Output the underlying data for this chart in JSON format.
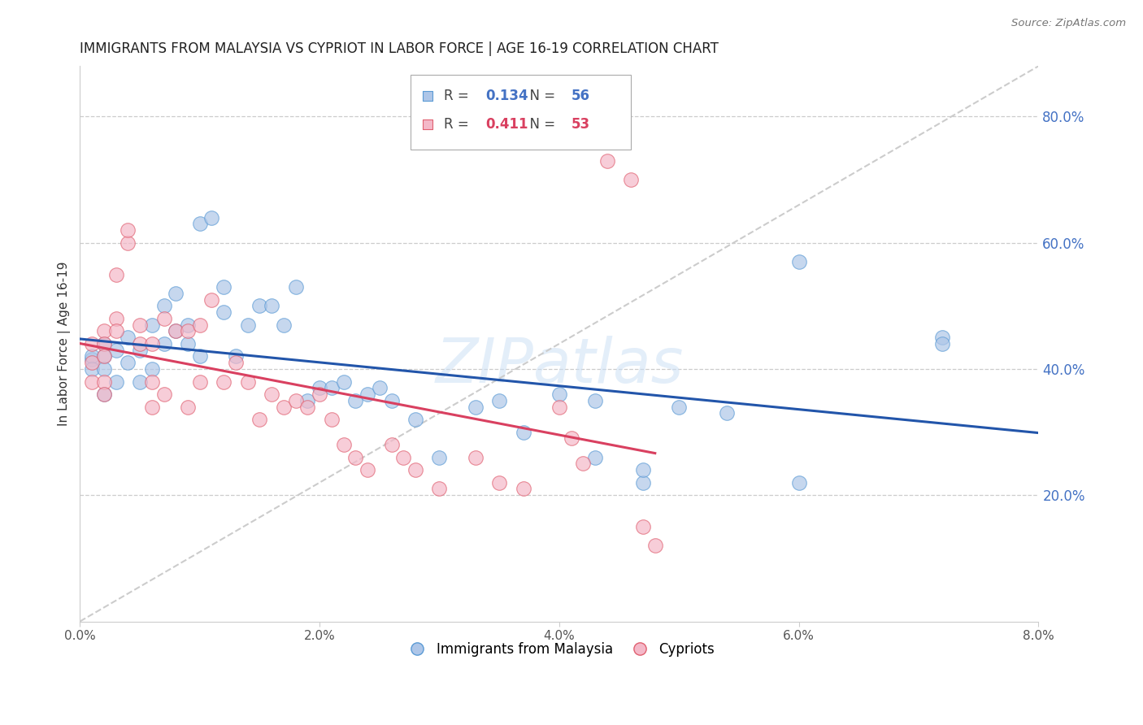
{
  "title": "IMMIGRANTS FROM MALAYSIA VS CYPRIOT IN LABOR FORCE | AGE 16-19 CORRELATION CHART",
  "source": "Source: ZipAtlas.com",
  "ylabel": "In Labor Force | Age 16-19",
  "xlim": [
    0.0,
    0.08
  ],
  "ylim": [
    0.0,
    0.88
  ],
  "xticks": [
    0.0,
    0.02,
    0.04,
    0.06,
    0.08
  ],
  "xtick_labels": [
    "0.0%",
    "2.0%",
    "4.0%",
    "6.0%",
    "8.0%"
  ],
  "yticks_right": [
    0.2,
    0.4,
    0.6,
    0.8
  ],
  "ytick_labels_right": [
    "20.0%",
    "40.0%",
    "60.0%",
    "80.0%"
  ],
  "blue_color": "#aec6e8",
  "pink_color": "#f4b8c8",
  "blue_edge_color": "#5b9bd5",
  "pink_edge_color": "#e06070",
  "blue_line_color": "#2255aa",
  "pink_line_color": "#d94060",
  "ref_line_color": "#cccccc",
  "legend_R_blue": "0.134",
  "legend_N_blue": "56",
  "legend_R_pink": "0.411",
  "legend_N_pink": "53",
  "legend_label_blue": "Immigrants from Malaysia",
  "legend_label_pink": "Cypriots",
  "watermark_color": "#cce0f5",
  "blue_x": [
    0.001,
    0.001,
    0.001,
    0.002,
    0.002,
    0.002,
    0.002,
    0.003,
    0.003,
    0.004,
    0.004,
    0.005,
    0.005,
    0.006,
    0.006,
    0.007,
    0.007,
    0.008,
    0.008,
    0.009,
    0.009,
    0.01,
    0.01,
    0.011,
    0.012,
    0.012,
    0.013,
    0.014,
    0.015,
    0.016,
    0.017,
    0.018,
    0.019,
    0.02,
    0.021,
    0.022,
    0.023,
    0.024,
    0.025,
    0.026,
    0.028,
    0.03,
    0.033,
    0.035,
    0.037,
    0.04,
    0.043,
    0.043,
    0.047,
    0.047,
    0.05,
    0.054,
    0.06,
    0.06,
    0.072,
    0.072
  ],
  "blue_y": [
    0.415,
    0.42,
    0.4,
    0.42,
    0.44,
    0.4,
    0.36,
    0.43,
    0.38,
    0.41,
    0.45,
    0.43,
    0.38,
    0.4,
    0.47,
    0.44,
    0.5,
    0.46,
    0.52,
    0.44,
    0.47,
    0.42,
    0.63,
    0.64,
    0.49,
    0.53,
    0.42,
    0.47,
    0.5,
    0.5,
    0.47,
    0.53,
    0.35,
    0.37,
    0.37,
    0.38,
    0.35,
    0.36,
    0.37,
    0.35,
    0.32,
    0.26,
    0.34,
    0.35,
    0.3,
    0.36,
    0.35,
    0.26,
    0.22,
    0.24,
    0.34,
    0.33,
    0.57,
    0.22,
    0.45,
    0.44
  ],
  "pink_x": [
    0.001,
    0.001,
    0.001,
    0.002,
    0.002,
    0.002,
    0.002,
    0.002,
    0.003,
    0.003,
    0.003,
    0.004,
    0.004,
    0.005,
    0.005,
    0.006,
    0.006,
    0.006,
    0.007,
    0.007,
    0.008,
    0.009,
    0.009,
    0.01,
    0.01,
    0.011,
    0.012,
    0.013,
    0.014,
    0.015,
    0.016,
    0.017,
    0.018,
    0.019,
    0.02,
    0.021,
    0.022,
    0.023,
    0.024,
    0.026,
    0.027,
    0.028,
    0.03,
    0.033,
    0.035,
    0.037,
    0.04,
    0.041,
    0.042,
    0.044,
    0.046,
    0.047,
    0.048
  ],
  "pink_y": [
    0.41,
    0.44,
    0.38,
    0.46,
    0.44,
    0.42,
    0.38,
    0.36,
    0.48,
    0.46,
    0.55,
    0.6,
    0.62,
    0.47,
    0.44,
    0.44,
    0.38,
    0.34,
    0.48,
    0.36,
    0.46,
    0.46,
    0.34,
    0.47,
    0.38,
    0.51,
    0.38,
    0.41,
    0.38,
    0.32,
    0.36,
    0.34,
    0.35,
    0.34,
    0.36,
    0.32,
    0.28,
    0.26,
    0.24,
    0.28,
    0.26,
    0.24,
    0.21,
    0.26,
    0.22,
    0.21,
    0.34,
    0.29,
    0.25,
    0.73,
    0.7,
    0.15,
    0.12
  ]
}
